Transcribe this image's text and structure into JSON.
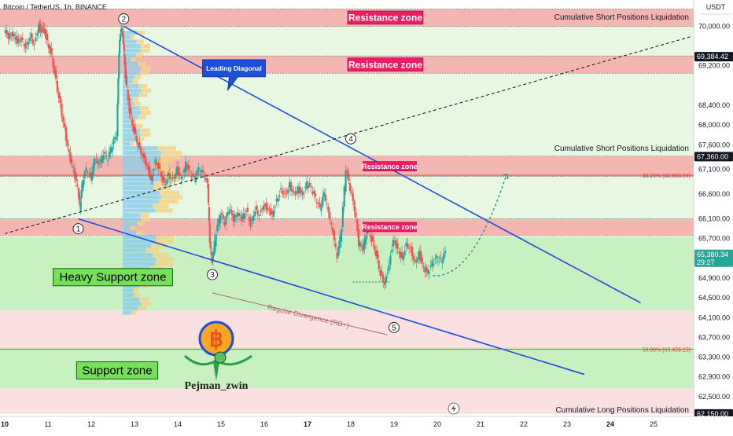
{
  "header": {
    "symbol_line": "Bitcoin / TetherUS, 1h, BINANCE"
  },
  "colors": {
    "up": "#26a69a",
    "down": "#ef5350",
    "resistance_band": "#f4b6b1",
    "resistance_label": "#e91e63",
    "support_band": "#c8f0c0",
    "support_label": "#76e05a",
    "light_band": "#e7f7e2",
    "pink_band": "#fae0e0",
    "trend": "#1e4fd8",
    "price_tag": "#26a69a"
  },
  "chart_data": {
    "type": "candlestick",
    "price_axis_unit": "USDT",
    "ylim": [
      62100,
      70500
    ],
    "y_ticks": [
      70000,
      69200,
      68400,
      68000,
      67600,
      67100,
      66600,
      66100,
      65700,
      64900,
      64500,
      64100,
      63700,
      63300,
      62900,
      62500
    ],
    "x_ticks": [
      {
        "label": "10",
        "x": 10
      },
      {
        "label": "11",
        "x": 11
      },
      {
        "label": "12",
        "x": 12
      },
      {
        "label": "13",
        "x": 13
      },
      {
        "label": "14",
        "x": 14
      },
      {
        "label": "15",
        "x": 15
      },
      {
        "label": "16",
        "x": 16
      },
      {
        "label": "17",
        "x": 17
      },
      {
        "label": "18",
        "x": 18
      },
      {
        "label": "19",
        "x": 19
      },
      {
        "label": "20",
        "x": 20
      },
      {
        "label": "21",
        "x": 21
      },
      {
        "label": "22",
        "x": 22
      },
      {
        "label": "23",
        "x": 23
      },
      {
        "label": "24",
        "x": 24
      },
      {
        "label": "25",
        "x": 25
      }
    ],
    "price_tags": [
      {
        "value": 69384.42,
        "label": "69,384.42",
        "style": "dark"
      },
      {
        "value": 67360.0,
        "label": "67,360.00",
        "style": "dark"
      },
      {
        "value": 65380.34,
        "label": "65,380.34",
        "sub": "29:27",
        "style": "green"
      },
      {
        "value": 62150.0,
        "label": "62,150.00",
        "style": "dark"
      }
    ],
    "price_path": [
      [
        10.0,
        69900
      ],
      [
        10.1,
        69800
      ],
      [
        10.2,
        69850
      ],
      [
        10.3,
        69700
      ],
      [
        10.4,
        69750
      ],
      [
        10.5,
        69600
      ],
      [
        10.6,
        69800
      ],
      [
        10.7,
        69650
      ],
      [
        10.8,
        70050
      ],
      [
        10.85,
        69900
      ],
      [
        10.9,
        70000
      ],
      [
        11.0,
        69700
      ],
      [
        11.1,
        69400
      ],
      [
        11.2,
        68900
      ],
      [
        11.3,
        68400
      ],
      [
        11.4,
        67900
      ],
      [
        11.5,
        67400
      ],
      [
        11.6,
        67100
      ],
      [
        11.7,
        66700
      ],
      [
        11.75,
        66300
      ],
      [
        11.8,
        66800
      ],
      [
        11.9,
        67100
      ],
      [
        12.0,
        66900
      ],
      [
        12.1,
        67300
      ],
      [
        12.2,
        67200
      ],
      [
        12.3,
        67400
      ],
      [
        12.4,
        67300
      ],
      [
        12.5,
        67600
      ],
      [
        12.6,
        67800
      ],
      [
        12.65,
        69500
      ],
      [
        12.7,
        70000
      ],
      [
        12.75,
        69700
      ],
      [
        12.8,
        69000
      ],
      [
        12.9,
        68300
      ],
      [
        13.0,
        67900
      ],
      [
        13.1,
        67600
      ],
      [
        13.2,
        67400
      ],
      [
        13.3,
        67200
      ],
      [
        13.4,
        66900
      ],
      [
        13.5,
        67300
      ],
      [
        13.6,
        67100
      ],
      [
        13.7,
        66800
      ],
      [
        13.8,
        67000
      ],
      [
        13.9,
        66900
      ],
      [
        14.0,
        67100
      ],
      [
        14.1,
        66900
      ],
      [
        14.2,
        67200
      ],
      [
        14.3,
        67000
      ],
      [
        14.4,
        66900
      ],
      [
        14.5,
        67100
      ],
      [
        14.6,
        67000
      ],
      [
        14.7,
        66800
      ],
      [
        14.75,
        65600
      ],
      [
        14.8,
        65200
      ],
      [
        14.9,
        65800
      ],
      [
        15.0,
        66200
      ],
      [
        15.1,
        66000
      ],
      [
        15.2,
        66300
      ],
      [
        15.3,
        66100
      ],
      [
        15.4,
        66200
      ],
      [
        15.5,
        66100
      ],
      [
        15.6,
        66300
      ],
      [
        15.7,
        66000
      ],
      [
        15.8,
        66300
      ],
      [
        15.9,
        66200
      ],
      [
        16.0,
        66400
      ],
      [
        16.1,
        66300
      ],
      [
        16.2,
        66200
      ],
      [
        16.3,
        66500
      ],
      [
        16.4,
        66700
      ],
      [
        16.5,
        66600
      ],
      [
        16.6,
        66800
      ],
      [
        16.7,
        66600
      ],
      [
        16.8,
        66700
      ],
      [
        16.9,
        66600
      ],
      [
        17.0,
        66800
      ],
      [
        17.1,
        66700
      ],
      [
        17.2,
        66500
      ],
      [
        17.3,
        66300
      ],
      [
        17.4,
        66600
      ],
      [
        17.5,
        66200
      ],
      [
        17.6,
        65800
      ],
      [
        17.7,
        65300
      ],
      [
        17.8,
        65900
      ],
      [
        17.9,
        67100
      ],
      [
        18.0,
        66700
      ],
      [
        18.1,
        66300
      ],
      [
        18.2,
        65600
      ],
      [
        18.3,
        65500
      ],
      [
        18.4,
        65900
      ],
      [
        18.5,
        65700
      ],
      [
        18.6,
        65400
      ],
      [
        18.7,
        65000
      ],
      [
        18.8,
        64800
      ],
      [
        18.9,
        65200
      ],
      [
        19.0,
        65700
      ],
      [
        19.1,
        65500
      ],
      [
        19.2,
        65300
      ],
      [
        19.3,
        65600
      ],
      [
        19.4,
        65500
      ],
      [
        19.5,
        65200
      ],
      [
        19.6,
        65400
      ],
      [
        19.7,
        65100
      ],
      [
        19.8,
        65000
      ],
      [
        19.9,
        65200
      ],
      [
        20.0,
        65300
      ],
      [
        20.1,
        65250
      ],
      [
        20.2,
        65400
      ]
    ],
    "zones": [
      {
        "y1": 70350,
        "y2": 70000,
        "kind": "resistance",
        "label": "Resistance zone",
        "size": "large",
        "label_x": 18.8
      },
      {
        "y1": 69400,
        "y2": 69050,
        "kind": "resistance",
        "label": "Resistance zone",
        "size": "large",
        "label_x": 18.8
      },
      {
        "y1": 67370,
        "y2": 66960,
        "kind": "resistance",
        "label": "Resistance zone",
        "size": "small",
        "label_x": 18.9
      },
      {
        "y1": 66100,
        "y2": 65770,
        "kind": "resistance",
        "label": "Resistance zone",
        "size": "small",
        "label_x": 18.9
      },
      {
        "y1": 65740,
        "y2": 64250,
        "kind": "support",
        "label": "Heavy Support zone",
        "label_x": 12.5,
        "label_y": 64920
      },
      {
        "y1": 63500,
        "y2": 62670,
        "kind": "support",
        "label": "Support zone",
        "label_x": 12.6,
        "label_y": 63030
      }
    ],
    "right_notes": [
      {
        "y": 70200,
        "label": "Cumulative Short Positions Liquidation"
      },
      {
        "y": 67540,
        "label": "Cumulative Short Positions Liquidation"
      },
      {
        "y": 62240,
        "label": "Cumulative Long Positions Liquidation"
      }
    ],
    "fib_levels": [
      {
        "y": 66983,
        "label": "38.20% (66,983.04)"
      },
      {
        "y": 63459,
        "label": "50.00% (63,459.15)"
      }
    ],
    "trendlines": [
      {
        "from": [
          12.75,
          70000
        ],
        "to": [
          24.7,
          64400
        ],
        "style": "solid"
      },
      {
        "from": [
          11.7,
          66100
        ],
        "to": [
          23.4,
          62950
        ],
        "style": "solid"
      },
      {
        "from": [
          10.0,
          65800
        ],
        "to": [
          25.9,
          69800
        ],
        "style": "dashed"
      }
    ],
    "waves": [
      {
        "label": "1",
        "x": 11.7,
        "y": 65900
      },
      {
        "label": "2",
        "x": 12.75,
        "y": 70150
      },
      {
        "label": "3",
        "x": 14.8,
        "y": 64970
      },
      {
        "label": "4",
        "x": 18.0,
        "y": 67720
      },
      {
        "label": "5",
        "x": 19.0,
        "y": 63900
      }
    ],
    "callout": {
      "label": "Leading Diagonal",
      "x": 15.3,
      "y": 69150
    },
    "divergence": {
      "label": "Regular Divergence (RD+)",
      "from": [
        14.8,
        64600
      ],
      "to": [
        18.85,
        63750
      ]
    },
    "projection": {
      "from": [
        19.9,
        64950
      ],
      "to": [
        21.6,
        67000
      ]
    },
    "logo_text": "Pejman_zwin"
  }
}
